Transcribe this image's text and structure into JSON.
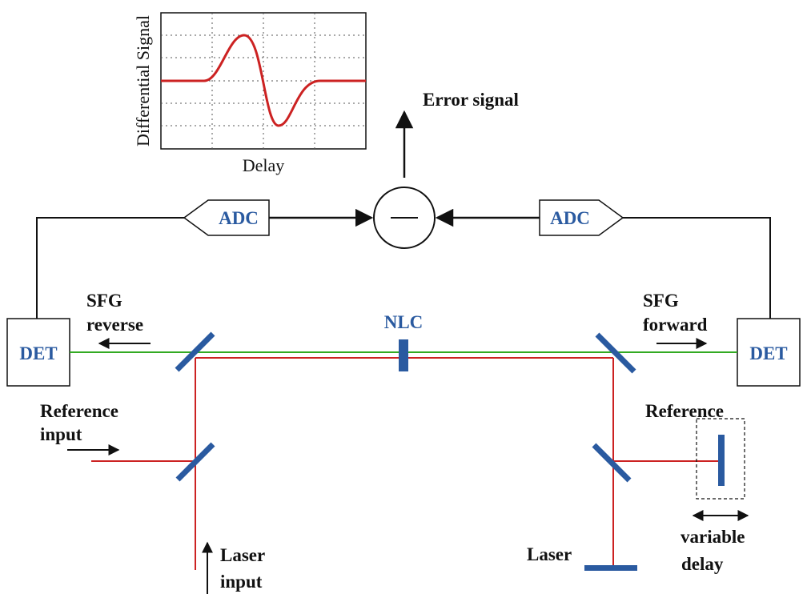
{
  "colors": {
    "wire": "#111111",
    "laser_beam": "#cc2222",
    "sfg_beam": "#33aa22",
    "optic": "#2a5aa0",
    "label_blue": "#2a5aa0"
  },
  "plot": {
    "xlabel": "Delay",
    "ylabel": "Differential Signal",
    "grid": true
  },
  "labels": {
    "error_signal": "Error signal",
    "adc_left": "ADC",
    "adc_right": "ADC",
    "subtractor": "−",
    "det_left": "DET",
    "det_right": "DET",
    "nlc": "NLC",
    "sfg_reverse_1": "SFG",
    "sfg_reverse_2": "reverse",
    "sfg_forward_1": "SFG",
    "sfg_forward_2": "forward",
    "reference_input_1": "Reference",
    "reference_input_2": "input",
    "laser_input_1": "Laser",
    "laser_input_2": "input",
    "reference_right": "Reference",
    "laser_right": "Laser",
    "variable_delay_1": "variable",
    "variable_delay_2": "delay"
  }
}
